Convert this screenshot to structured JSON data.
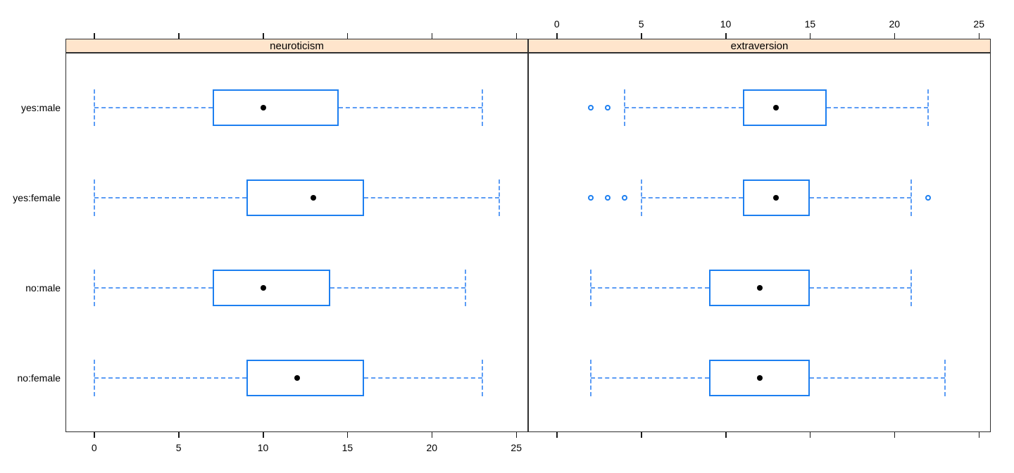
{
  "figure": {
    "background": "#ffffff"
  },
  "chart_data": {
    "type": "boxplot",
    "orientation": "horizontal",
    "title": "",
    "categories": [
      "yes:male",
      "yes:female",
      "no:male",
      "no:female"
    ],
    "x_axis": {
      "ticks": [
        0,
        5,
        10,
        15,
        20,
        25
      ],
      "xlim": [
        -1.7,
        25.7
      ],
      "top_labels_panel": "extraversion",
      "bottom_labels_panel": "neuroticism"
    },
    "colors": {
      "box": "#1d7ff0",
      "whisker": "#5b9cf5",
      "outlier": "#1d7ff0",
      "median_dot": "#000000",
      "strip_bg": "#ffe5cc",
      "panel_border": "#2f2f2f"
    },
    "panels": [
      {
        "title": "neuroticism",
        "bottom_axis_labels": true,
        "top_axis_labels": false,
        "rows": [
          {
            "label": "yes:male",
            "whisker_low": 0,
            "q1": 7,
            "median": 10,
            "q3": 14.5,
            "whisker_high": 23,
            "outliers": []
          },
          {
            "label": "yes:female",
            "whisker_low": 0,
            "q1": 9,
            "median": 13,
            "q3": 16,
            "whisker_high": 24,
            "outliers": []
          },
          {
            "label": "no:male",
            "whisker_low": 0,
            "q1": 7,
            "median": 10,
            "q3": 14,
            "whisker_high": 22,
            "outliers": []
          },
          {
            "label": "no:female",
            "whisker_low": 0,
            "q1": 9,
            "median": 12,
            "q3": 16,
            "whisker_high": 23,
            "outliers": []
          }
        ]
      },
      {
        "title": "extraversion",
        "bottom_axis_labels": false,
        "top_axis_labels": true,
        "rows": [
          {
            "label": "yes:male",
            "whisker_low": 4,
            "q1": 11,
            "median": 13,
            "q3": 16,
            "whisker_high": 22,
            "outliers": [
              2,
              3
            ]
          },
          {
            "label": "yes:female",
            "whisker_low": 5,
            "q1": 11,
            "median": 13,
            "q3": 15,
            "whisker_high": 21,
            "outliers": [
              2,
              3,
              4,
              22
            ]
          },
          {
            "label": "no:male",
            "whisker_low": 2,
            "q1": 9,
            "median": 12,
            "q3": 15,
            "whisker_high": 21,
            "outliers": []
          },
          {
            "label": "no:female",
            "whisker_low": 2,
            "q1": 9,
            "median": 12,
            "q3": 15,
            "whisker_high": 23,
            "outliers": []
          }
        ]
      }
    ]
  }
}
